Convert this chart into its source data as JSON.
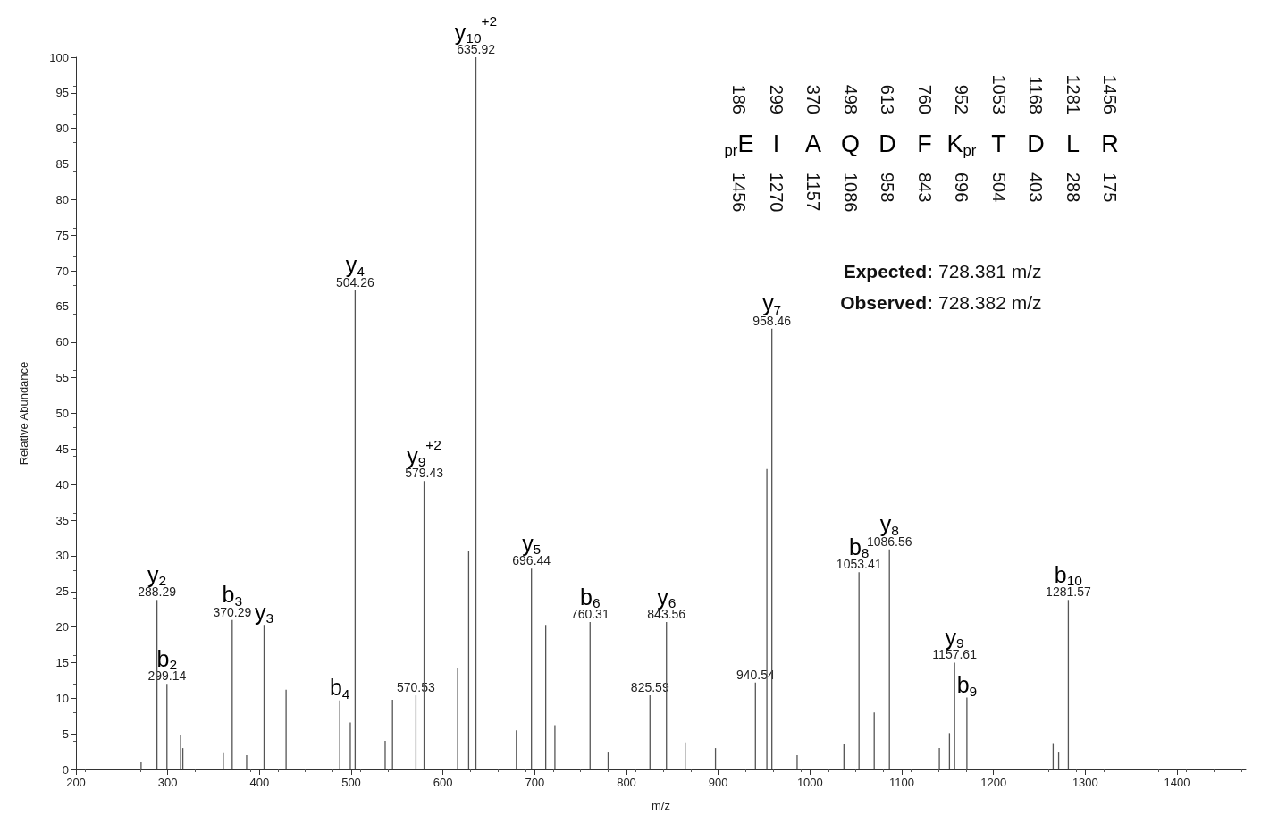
{
  "chart_data": {
    "type": "bar",
    "xlabel": "m/z",
    "ylabel": "Relative Abundance",
    "x": [
      271,
      288.29,
      299.14,
      314,
      316.5,
      360.6,
      370.29,
      386,
      405,
      429,
      487.5,
      499,
      504.26,
      537,
      545,
      570.53,
      579.43,
      616,
      628,
      635.92,
      680,
      696.44,
      712,
      722,
      760.31,
      780,
      825.59,
      843.56,
      864,
      897,
      940.54,
      953,
      958.46,
      986,
      1037,
      1053.41,
      1070,
      1086.56,
      1141,
      1152,
      1157.61,
      1171,
      1265,
      1271,
      1281.57
    ],
    "values": [
      1,
      23.8,
      12,
      4.9,
      3,
      2.4,
      21,
      2,
      20.3,
      11.2,
      9.7,
      6.6,
      67.3,
      4,
      9.8,
      10.4,
      40.5,
      14.3,
      30.7,
      100,
      5.5,
      28.2,
      20.3,
      6.2,
      20.7,
      2.5,
      10.4,
      20.7,
      3.8,
      3,
      12.2,
      42.2,
      61.9,
      2,
      3.5,
      27.7,
      8,
      30.9,
      3,
      5.1,
      15,
      10.1,
      3.7,
      2.5,
      23.8
    ],
    "color": "#555555",
    "xlim": [
      200,
      1475
    ],
    "xticks": [
      200,
      300,
      400,
      500,
      600,
      700,
      800,
      900,
      1000,
      1100,
      1200,
      1300,
      1400
    ],
    "ylim": [
      0,
      100
    ],
    "yticks": [
      0,
      5,
      10,
      15,
      20,
      25,
      30,
      35,
      40,
      45,
      50,
      55,
      60,
      65,
      70,
      75,
      80,
      85,
      90,
      95,
      100
    ],
    "grid": false,
    "annotations": [
      "186",
      "$_{pr}$E",
      "1456",
      "299",
      "I",
      "1270",
      "370",
      "A",
      "1157",
      "498",
      "Q",
      "1086",
      "613",
      "D",
      "958",
      "760",
      "F",
      "843",
      "952",
      "K$_{pr}$",
      "696",
      "1053",
      "T",
      "504",
      "1168",
      "D",
      "403",
      "1281",
      "L",
      "288",
      "1456",
      "R",
      "175",
      "Expected:  728.381 m/z",
      "Observed: 728.382 m/z",
      {
        "text": "288.29",
        "x": 288.29,
        "y": 23.8
      },
      {
        "text": "y$_{2}$",
        "x": 288.29,
        "y": 23.8
      },
      {
        "text": "299.14",
        "x": 299.14,
        "y": 12
      },
      {
        "text": "b$_{2}$",
        "x": 299.14,
        "y": 12
      },
      {
        "text": "370.29",
        "x": 370.29,
        "y": 21
      },
      {
        "text": "b$_{3}$",
        "x": 370.29,
        "y": 21
      },
      {
        "text": "y$_{3}$",
        "x": 405,
        "y": 20.3
      },
      {
        "text": "b$_{4}$",
        "x": 487.5,
        "y": 9.7
      },
      {
        "text": "504.26",
        "x": 504.26,
        "y": 67.3
      },
      {
        "text": "y$_{4}$",
        "x": 504.26,
        "y": 67.3
      },
      {
        "text": "570.53",
        "x": 570.53,
        "y": 10.4
      },
      {
        "text": "579.43",
        "x": 579.43,
        "y": 40.5
      },
      {
        "text": "y$_{9}$$^{+2}$",
        "x": 579.43,
        "y": 40.5
      },
      {
        "text": "635.92",
        "x": 635.92,
        "y": 100
      },
      {
        "text": "y$_{10}$$^{+2}$",
        "x": 635.92,
        "y": 100
      },
      {
        "text": "696.44",
        "x": 696.44,
        "y": 28.2
      },
      {
        "text": "y$_{5}$",
        "x": 696.44,
        "y": 28.2
      },
      {
        "text": "760.31",
        "x": 760.31,
        "y": 20.7
      },
      {
        "text": "b$_{6}$",
        "x": 760.31,
        "y": 20.7
      },
      {
        "text": "825.59",
        "x": 825.59,
        "y": 10.4
      },
      {
        "text": "843.56",
        "x": 843.56,
        "y": 20.7
      },
      {
        "text": "y$_{6}$",
        "x": 843.56,
        "y": 20.7
      },
      {
        "text": "940.54",
        "x": 940.54,
        "y": 12.2
      },
      {
        "text": "958.46",
        "x": 958.46,
        "y": 61.9
      },
      {
        "text": "y$_{7}$",
        "x": 958.46,
        "y": 61.9
      },
      {
        "text": "1053.41",
        "x": 1053.41,
        "y": 27.7
      },
      {
        "text": "b$_{8}$",
        "x": 1053.41,
        "y": 27.7
      },
      {
        "text": "1086.56",
        "x": 1086.56,
        "y": 30.9
      },
      {
        "text": "y$_{8}$",
        "x": 1086.56,
        "y": 30.9
      },
      {
        "text": "1157.61",
        "x": 1157.61,
        "y": 15
      },
      {
        "text": "y$_{9}$",
        "x": 1157.61,
        "y": 15
      },
      {
        "text": "b$_{9}$",
        "x": 1171,
        "y": 10.1
      },
      {
        "text": "1281.57",
        "x": 1281.57,
        "y": 23.8
      },
      {
        "text": "b$_{10}$",
        "x": 1281.57,
        "y": 23.8
      }
    ]
  }
}
